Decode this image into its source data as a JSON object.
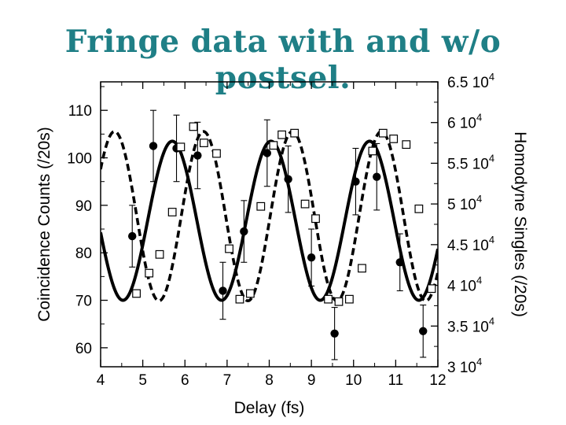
{
  "slide": {
    "title": "Fringe data with and w/o postsel."
  },
  "chart_data": {
    "type": "scatter",
    "xlabel": "Delay (fs)",
    "ylabel": "Coincidence Counts (/20s)",
    "y2label": "Homodyne Singles (/20s)",
    "xlim": [
      4,
      12
    ],
    "ylim": [
      56,
      116
    ],
    "y2lim": [
      30000,
      65000
    ],
    "x_ticks": [
      "4",
      "5",
      "6",
      "7",
      "8",
      "9",
      "10",
      "11",
      "12"
    ],
    "y_ticks": [
      "60",
      "70",
      "80",
      "90",
      "100",
      "110"
    ],
    "y2_ticks": [
      {
        "base": "3 10",
        "exp": "4",
        "value": 30000
      },
      {
        "base": "3.5 10",
        "exp": "4",
        "value": 35000
      },
      {
        "base": "4 10",
        "exp": "4",
        "value": 40000
      },
      {
        "base": "4.5 10",
        "exp": "4",
        "value": 45000
      },
      {
        "base": "5 10",
        "exp": "4",
        "value": 50000
      },
      {
        "base": "5.5 10",
        "exp": "4",
        "value": 55000
      },
      {
        "base": "6 10",
        "exp": "4",
        "value": 60000
      },
      {
        "base": "6.5 10",
        "exp": "4",
        "value": 65000
      }
    ],
    "grid": false,
    "series": [
      {
        "marker": "filled-circle",
        "axis": "left",
        "points": [
          {
            "x": 4.75,
            "y": 83.5,
            "err": 6.5
          },
          {
            "x": 5.25,
            "y": 102.5,
            "err": 7.5
          },
          {
            "x": 5.8,
            "y": 102,
            "err": 7
          },
          {
            "x": 6.3,
            "y": 100.5,
            "err": 7
          },
          {
            "x": 6.9,
            "y": 72,
            "err": 6
          },
          {
            "x": 7.4,
            "y": 84.5,
            "err": 6.5
          },
          {
            "x": 7.95,
            "y": 101,
            "err": 7
          },
          {
            "x": 8.45,
            "y": 95.5,
            "err": 7
          },
          {
            "x": 9.0,
            "y": 79,
            "err": 6
          },
          {
            "x": 9.55,
            "y": 63,
            "err": 5.5
          },
          {
            "x": 10.05,
            "y": 95,
            "err": 7
          },
          {
            "x": 10.55,
            "y": 96,
            "err": 7
          },
          {
            "x": 11.1,
            "y": 78,
            "err": 6
          },
          {
            "x": 11.65,
            "y": 63.5,
            "err": 5.5
          }
        ]
      },
      {
        "marker": "open-square",
        "axis": "right",
        "points": [
          {
            "x": 4.85,
            "y": 39000
          },
          {
            "x": 5.15,
            "y": 41500
          },
          {
            "x": 5.4,
            "y": 43800
          },
          {
            "x": 5.7,
            "y": 49000
          },
          {
            "x": 5.9,
            "y": 57000
          },
          {
            "x": 6.2,
            "y": 59500
          },
          {
            "x": 6.45,
            "y": 57500
          },
          {
            "x": 6.75,
            "y": 56200
          },
          {
            "x": 7.05,
            "y": 44500
          },
          {
            "x": 7.3,
            "y": 38300
          },
          {
            "x": 7.55,
            "y": 39000
          },
          {
            "x": 7.8,
            "y": 49700
          },
          {
            "x": 8.1,
            "y": 57200
          },
          {
            "x": 8.3,
            "y": 58500
          },
          {
            "x": 8.6,
            "y": 58700
          },
          {
            "x": 8.85,
            "y": 50000
          },
          {
            "x": 9.1,
            "y": 48200
          },
          {
            "x": 9.4,
            "y": 38300
          },
          {
            "x": 9.65,
            "y": 38000
          },
          {
            "x": 9.9,
            "y": 38300
          },
          {
            "x": 10.2,
            "y": 42100
          },
          {
            "x": 10.45,
            "y": 56500
          },
          {
            "x": 10.7,
            "y": 58700
          },
          {
            "x": 10.95,
            "y": 58000
          },
          {
            "x": 11.25,
            "y": 57300
          },
          {
            "x": 11.55,
            "y": 49400
          },
          {
            "x": 11.85,
            "y": 39600
          }
        ]
      }
    ],
    "fits": [
      {
        "style": "solid",
        "axis": "left",
        "mean": 86.75,
        "amplitude": 16.75,
        "period": 2.34,
        "phase_x": 5.7
      },
      {
        "style": "dashed",
        "axis": "right",
        "mean": 48500,
        "amplitude": 10400,
        "period": 2.11,
        "phase_x": 8.55
      }
    ]
  }
}
